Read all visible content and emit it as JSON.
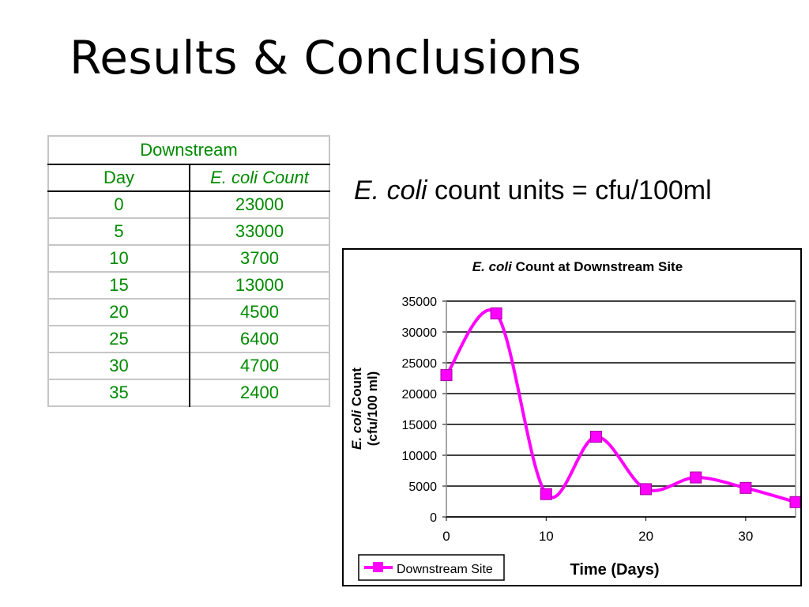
{
  "slide": {
    "title": "Results & Conclusions",
    "units_note_italic": "E. coli",
    "units_note_rest": " count units = cfu/100ml"
  },
  "table": {
    "group_header": "Downstream",
    "columns": [
      "Day",
      "E. coli Count"
    ],
    "rows": [
      [
        "0",
        "23000"
      ],
      [
        "5",
        "33000"
      ],
      [
        "10",
        "3700"
      ],
      [
        "15",
        "13000"
      ],
      [
        "20",
        "4500"
      ],
      [
        "25",
        "6400"
      ],
      [
        "30",
        "4700"
      ],
      [
        "35",
        "2400"
      ]
    ],
    "text_color": "#008a00"
  },
  "chart_data": {
    "type": "line",
    "title_italic": "E. coli",
    "title_rest": " Count at Downstream Site",
    "xlabel": "Time (Days)",
    "ylabel_italic": "E. coli",
    "ylabel_rest": " Count",
    "ylabel_line2": "(cfu/100 ml)",
    "x": [
      0,
      5,
      10,
      15,
      20,
      25,
      30,
      35
    ],
    "series": [
      {
        "name": "Downstream Site",
        "values": [
          23000,
          33000,
          3700,
          13000,
          4500,
          6400,
          4700,
          2400
        ],
        "color": "#ff00ff",
        "marker": "square",
        "smooth": true
      }
    ],
    "xlim": [
      0,
      35
    ],
    "ylim": [
      0,
      35000
    ],
    "xticks": [
      0,
      10,
      20,
      30
    ],
    "yticks": [
      0,
      5000,
      10000,
      15000,
      20000,
      25000,
      30000,
      35000
    ],
    "grid": "horizontal",
    "legend_position": "bottom-left"
  }
}
